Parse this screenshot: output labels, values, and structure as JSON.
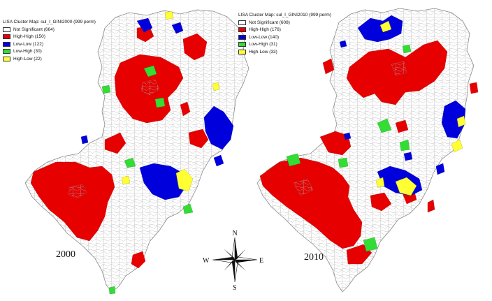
{
  "colors": {
    "not_significant": "#ffffff",
    "high_high": "#e60000",
    "low_low": "#0000dd",
    "low_high": "#33dd33",
    "high_low": "#ffff33",
    "outline": "#9a9a9a"
  },
  "maps": [
    {
      "year": "2000",
      "legend": {
        "title": "LISA Cluster Map: sul_I_GINI2000 (999 perm)",
        "items": [
          {
            "key": "not_significant",
            "label": "Not Significant (664)"
          },
          {
            "key": "high_high",
            "label": "High-High (150)"
          },
          {
            "key": "low_low",
            "label": "Low-Low (122)"
          },
          {
            "key": "low_high",
            "label": "Low-High (30)"
          },
          {
            "key": "high_low",
            "label": "High-Low (22)"
          }
        ]
      }
    },
    {
      "year": "2010",
      "legend": {
        "title": "LISA Cluster Map: sul_I_GINI2010 (999 perm)",
        "items": [
          {
            "key": "not_significant",
            "label": "Not Significant (608)"
          },
          {
            "key": "high_high",
            "label": "High-High (176)"
          },
          {
            "key": "low_low",
            "label": "Low-Low (140)"
          },
          {
            "key": "low_high",
            "label": "Low-High (31)"
          },
          {
            "key": "high_low",
            "label": "High-Low (33)"
          }
        ]
      }
    }
  ],
  "compass": {
    "n": "N",
    "s": "S",
    "e": "E",
    "w": "W",
    "icon": "compass-rose-icon"
  }
}
